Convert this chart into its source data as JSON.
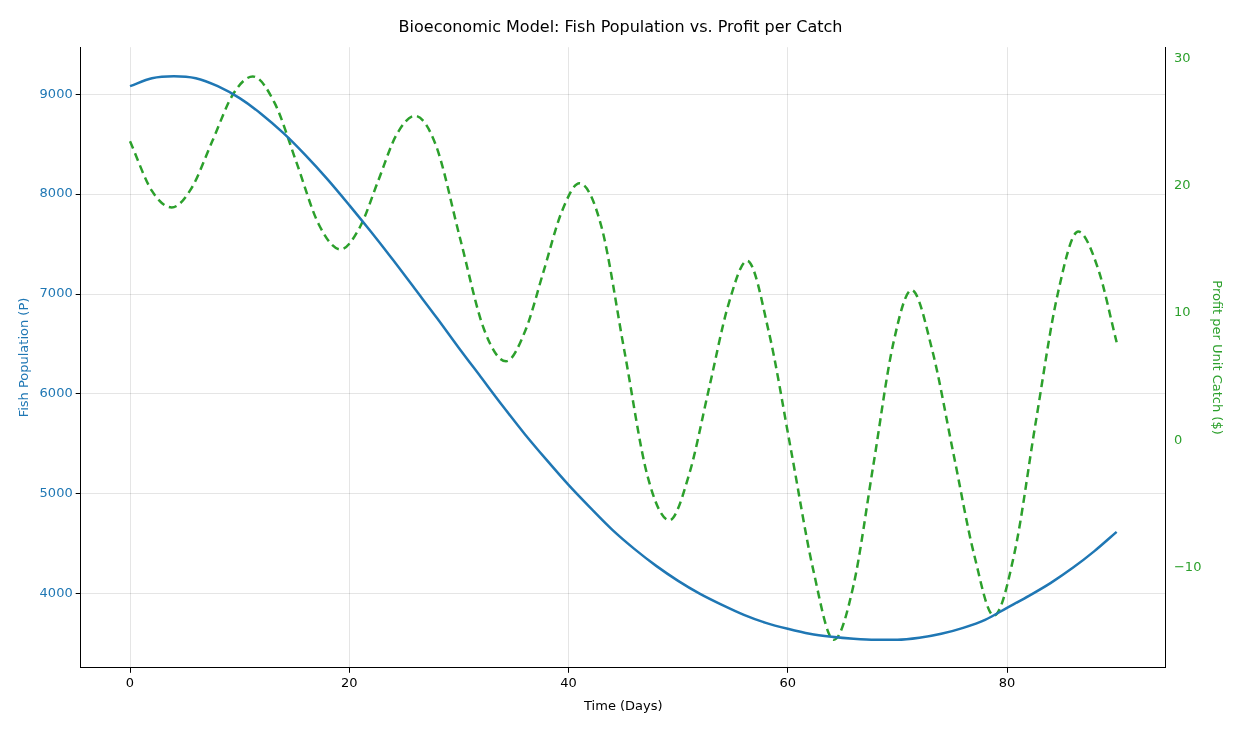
{
  "chart_data": {
    "type": "line",
    "title": "Bioeconomic Model: Fish Population vs. Profit per Catch",
    "xlabel": "Time (Days)",
    "ylabel": "Fish Population (P)",
    "y2label": "Profit per Unit Catch ($)",
    "xlim": [
      -4.5,
      94.5
    ],
    "xticks": [
      0,
      20,
      40,
      60,
      80
    ],
    "ylim": [
      3260,
      9470
    ],
    "yticks": [
      4000,
      5000,
      6000,
      7000,
      8000,
      9000
    ],
    "y2lim": [
      -17.9,
      30.9
    ],
    "y2ticks": [
      {
        "value": -10,
        "label": "−10"
      },
      0,
      10,
      20,
      30
    ],
    "grid": true,
    "legend": false,
    "marker": "none",
    "series": [
      {
        "color": "#1f77b4",
        "line_style": "solid",
        "x": [
          0,
          2,
          4,
          6,
          8,
          10,
          12,
          14,
          16,
          18,
          20,
          22,
          24,
          26,
          28,
          30,
          32,
          34,
          36,
          38,
          40,
          42,
          44,
          46,
          48,
          50,
          52,
          54,
          56,
          58,
          60,
          62,
          64,
          66,
          68,
          70,
          72,
          74,
          76,
          78,
          80,
          82,
          84,
          86,
          88,
          90
        ],
        "values": [
          9080,
          9160,
          9180,
          9160,
          9080,
          8960,
          8800,
          8610,
          8390,
          8150,
          7890,
          7620,
          7340,
          7050,
          6760,
          6460,
          6170,
          5880,
          5600,
          5340,
          5090,
          4860,
          4640,
          4450,
          4280,
          4130,
          4000,
          3890,
          3790,
          3710,
          3650,
          3600,
          3570,
          3550,
          3540,
          3540,
          3560,
          3600,
          3660,
          3740,
          3860,
          3980,
          4110,
          4260,
          4430,
          4620
        ]
      },
      {
        "color": "#2ca02c",
        "line_style": "dashed",
        "axis": "y2",
        "x": [
          0,
          2,
          3.8,
          5.6,
          7.5,
          9.4,
          11.2,
          13.2,
          15.2,
          17.2,
          19.2,
          21,
          22.6,
          24.3,
          26,
          27.9,
          30.1,
          32.3,
          34.3,
          36.1,
          37.7,
          39.4,
          41,
          43,
          45.1,
          47.2,
          49.2,
          51,
          52.8,
          54.6,
          56.3,
          58.3,
          60.3,
          62.3,
          64.2,
          66,
          67.8,
          69.6,
          71.3,
          73.2,
          75.1,
          77,
          78.8,
          80.7,
          82.6,
          84.6,
          86.5,
          88.3,
          90
        ],
        "values": [
          23.5,
          19.6,
          18.3,
          19.8,
          23.5,
          27.2,
          28.6,
          26.5,
          21.8,
          17,
          15,
          16.8,
          20.3,
          24,
          25.5,
          23.2,
          15.9,
          8.7,
          6.2,
          8.7,
          13.2,
          18,
          20.2,
          16.8,
          7,
          -2.8,
          -6.3,
          -2.7,
          4,
          10.7,
          14.1,
          8.4,
          -0.8,
          -10.1,
          -15.7,
          -11.4,
          -2,
          7.5,
          11.8,
          7,
          -1,
          -9,
          -13.8,
          -8.8,
          1.3,
          11.4,
          16.4,
          13.5,
          7.7
        ]
      }
    ]
  }
}
